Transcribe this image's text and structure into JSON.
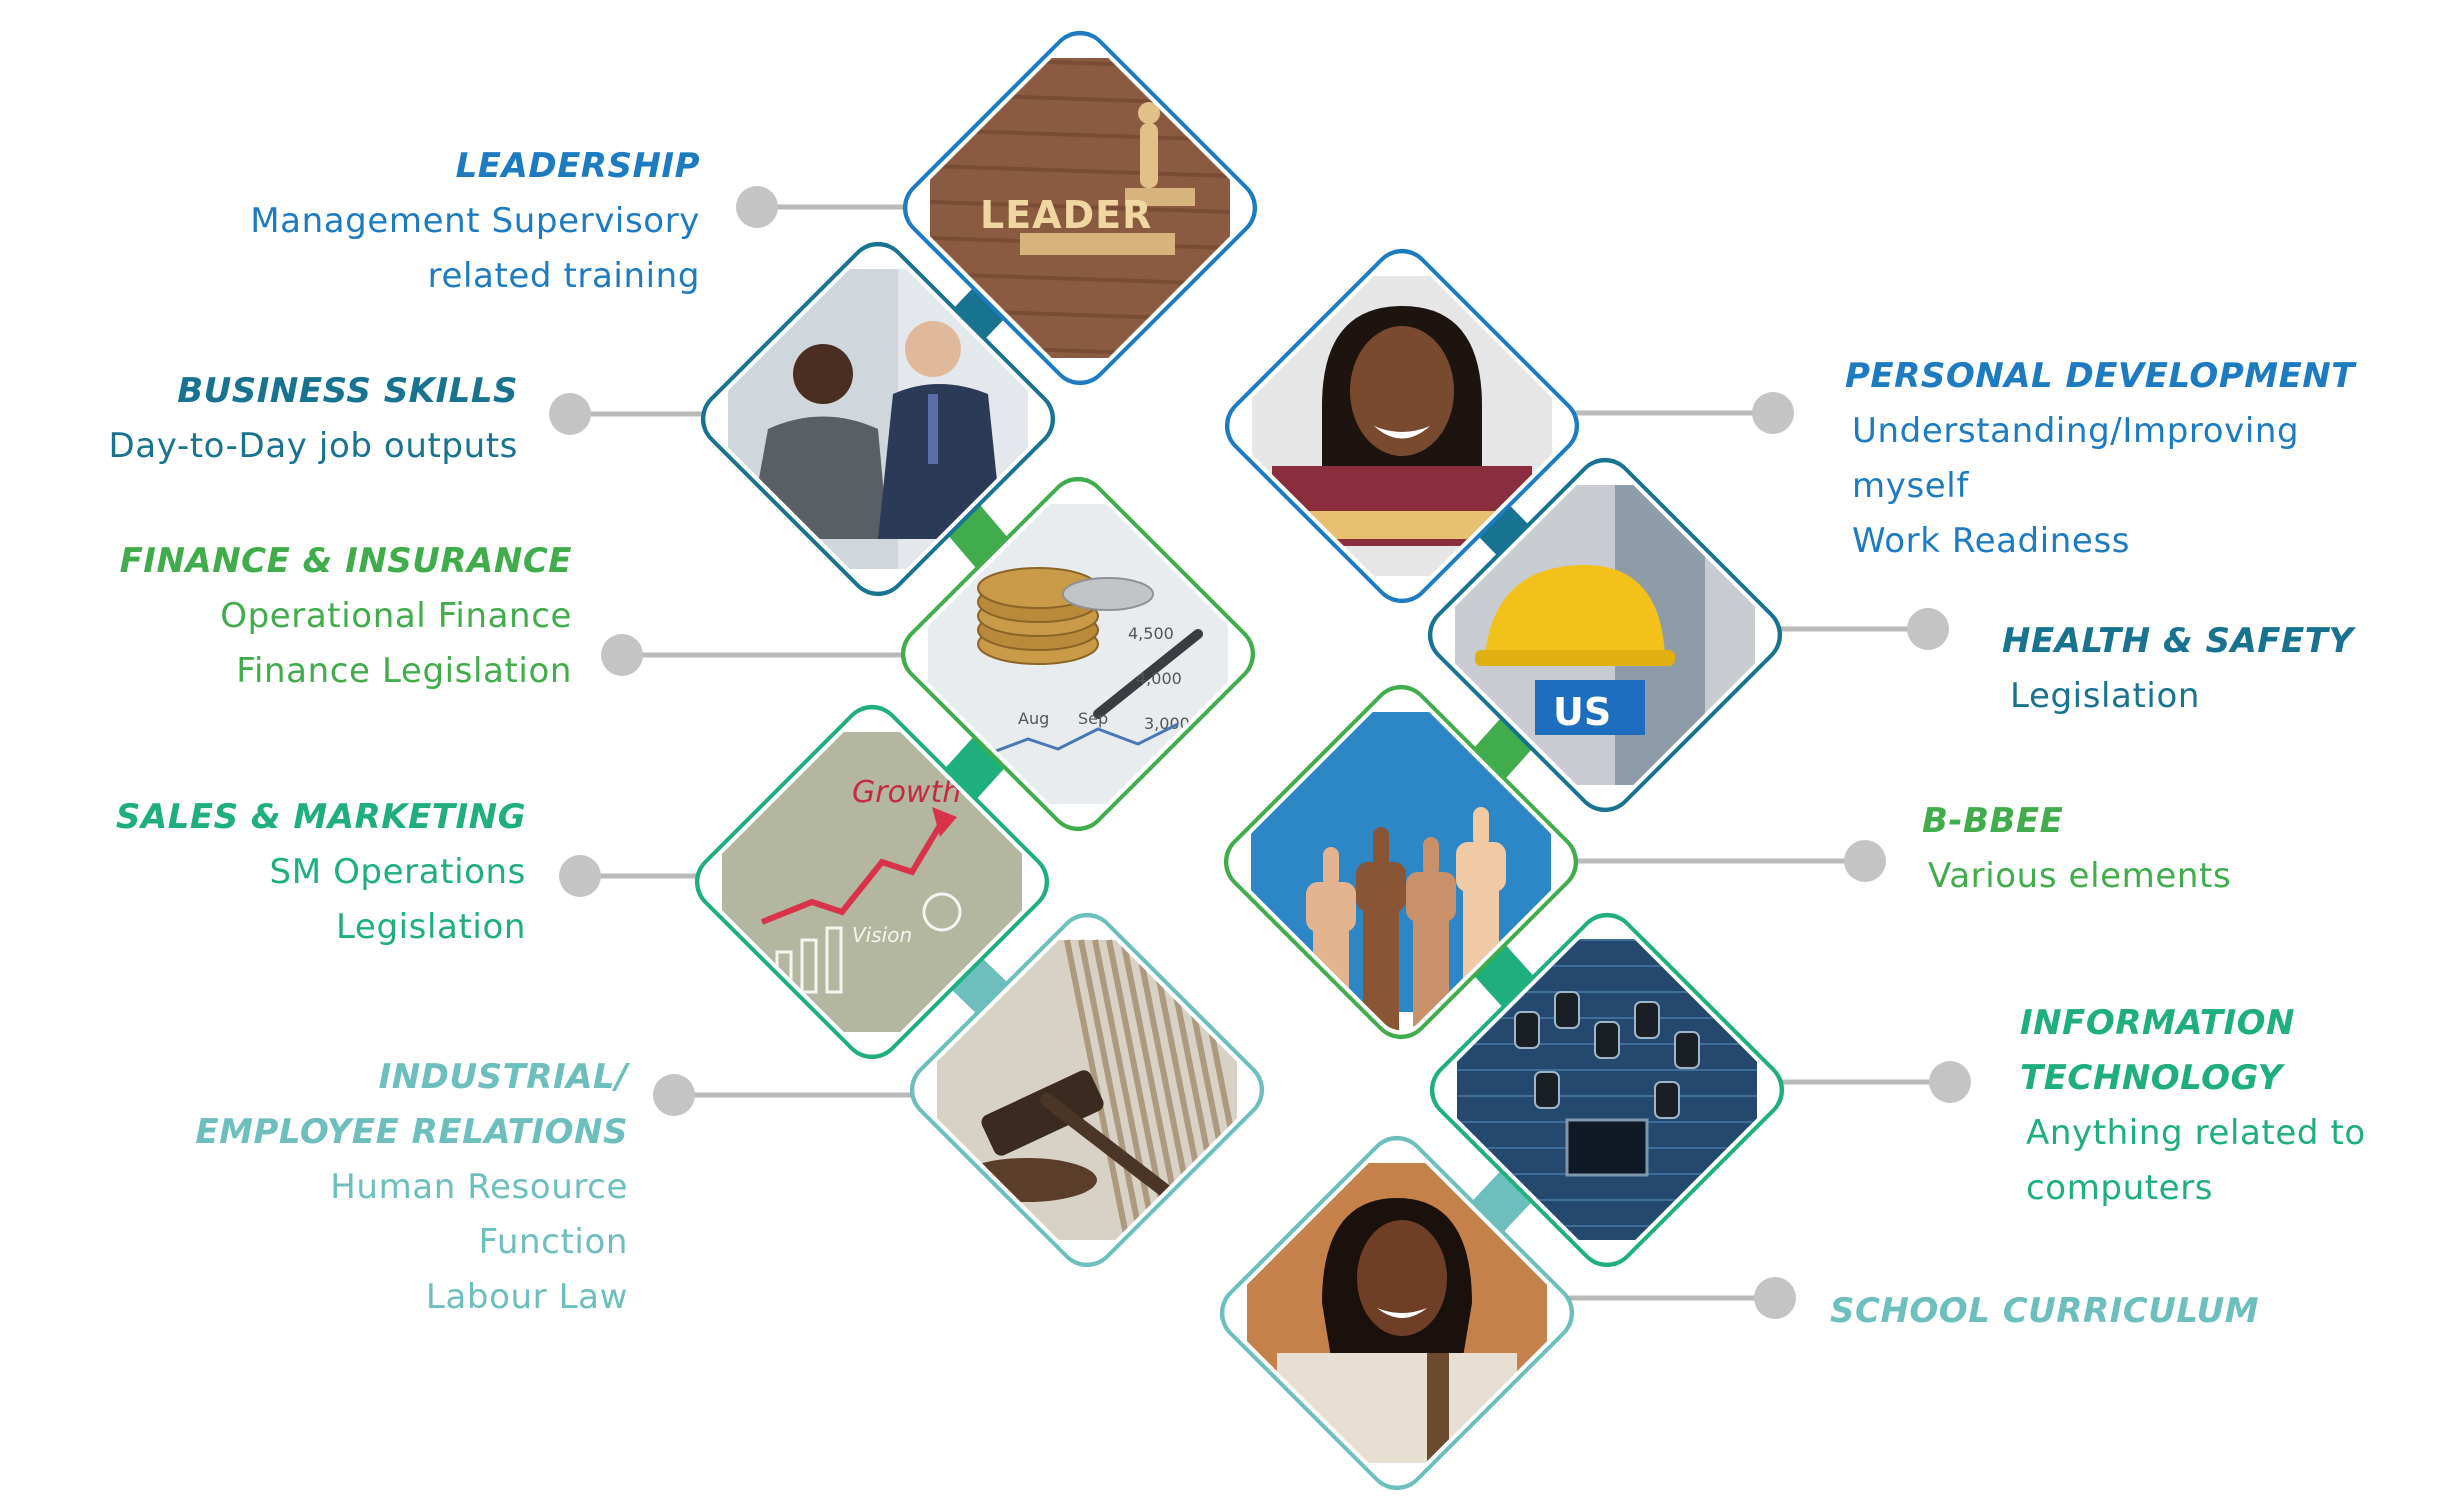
{
  "colors": {
    "blue": "#1d7bc1",
    "dark_teal": "#17738f",
    "green": "#41ac4c",
    "mid_green": "#1fae7e",
    "teal": "#6cbfbc",
    "connector_gray": "#b9b9b9",
    "dot_gray": "#c4c4c4"
  },
  "left_items": [
    {
      "title": "LEADERSHIP",
      "desc": "Management Supervisory\nrelated training",
      "color": "#1d7bc1",
      "image": "leader-blocks-photo"
    },
    {
      "title": "BUSINESS SKILLS",
      "desc": "Day-to-Day job outputs",
      "color": "#17738f",
      "image": "business-handshake-photo"
    },
    {
      "title": "FINANCE & INSURANCE",
      "desc": "Operational Finance\nFinance Legislation",
      "color": "#41ac4c",
      "image": "coins-and-pen-photo"
    },
    {
      "title": "SALES & MARKETING",
      "desc": "SM Operations\nLegislation",
      "color": "#1fae7e",
      "image": "growth-chalkboard-photo"
    },
    {
      "title": "INDUSTRIAL/\nEMPLOYEE RELATIONS",
      "desc": "Human Resource\nFunction\nLabour Law",
      "color": "#6cbfbc",
      "image": "gavel-photo"
    }
  ],
  "right_items": [
    {
      "title": "PERSONAL DEVELOPMENT",
      "desc": "Understanding/Improving\nmyself\nWork Readiness",
      "color": "#1d7bc1",
      "image": "smiling-woman-photo"
    },
    {
      "title": "HEALTH & SAFETY",
      "desc": "Legislation",
      "color": "#17738f",
      "image": "hard-hat-worker-photo",
      "photo_text": "US"
    },
    {
      "title": "B-BBEE",
      "desc": "Various elements",
      "color": "#41ac4c",
      "image": "thumbs-up-photo"
    },
    {
      "title": "INFORMATION\nTECHNOLOGY",
      "desc": "Anything related to\ncomputers",
      "color": "#1fae7e",
      "image": "circuit-board-photo"
    },
    {
      "title": "SCHOOL CURRICULUM",
      "desc": "",
      "color": "#6cbfbc",
      "image": "student-girl-photo"
    }
  ],
  "photo_texts": {
    "leader_sign": "LEADER",
    "growth": "Growth",
    "vision": "Vision",
    "nums": [
      "4,500",
      "4,000",
      "3,000"
    ],
    "months": [
      "Aug",
      "Sep"
    ]
  }
}
